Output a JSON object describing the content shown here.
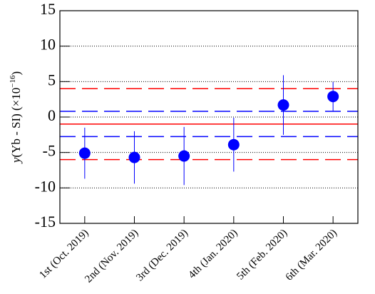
{
  "chart_data": {
    "type": "scatter",
    "categories": [
      "1st (Oct. 2019)",
      "2nd (Nov. 2019)",
      "3rd (Dec. 2019)",
      "4th (Jan. 2020)",
      "5th (Feb. 2020)",
      "6th (Mar. 2020)"
    ],
    "values": [
      -5.1,
      -5.7,
      -5.5,
      -3.9,
      1.7,
      2.9
    ],
    "errors": [
      3.6,
      3.7,
      4.1,
      3.8,
      4.2,
      2.05
    ],
    "color": "#0000ff",
    "ylabel": [
      "y",
      "(Yb - SI) (×10",
      "−16",
      ")"
    ],
    "ylim": [
      -15,
      15
    ],
    "yticks": [
      -15,
      -10,
      -5,
      0,
      5,
      10,
      15
    ],
    "grid": true,
    "hlines": [
      {
        "value": 4,
        "color": "#ff0000",
        "dashed": true
      },
      {
        "value": -6,
        "color": "#ff0000",
        "dashed": true
      },
      {
        "value": 0.8,
        "color": "#0000ff",
        "dashed": true
      },
      {
        "value": -2.75,
        "color": "#0000ff",
        "dashed": true
      },
      {
        "value": -1,
        "color": "#ff0000",
        "dashed": false
      }
    ]
  }
}
